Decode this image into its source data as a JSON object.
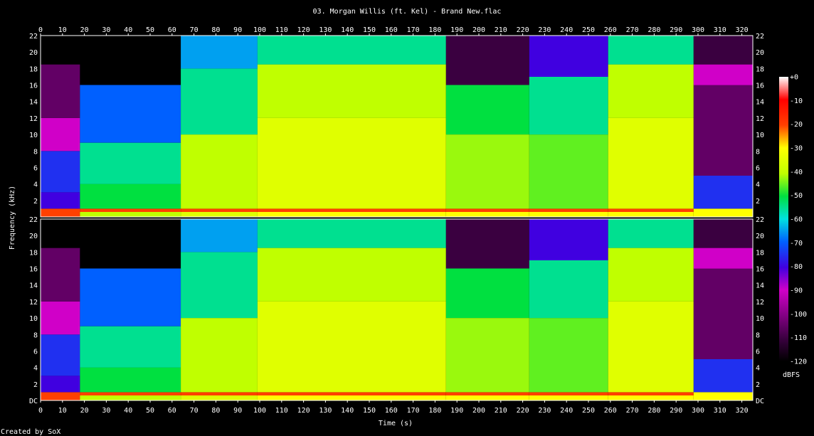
{
  "chart_data": {
    "type": "heatmap",
    "title": "03. Morgan Willis (ft. Kel) - Brand New.flac",
    "xlabel": "Time (s)",
    "ylabel": "Frequency (kHz)",
    "footer": "Created by SoX",
    "colorbar_label": "dBFS",
    "xlim": [
      0,
      325
    ],
    "ylim": [
      0,
      22
    ],
    "x_ticks": [
      0,
      10,
      20,
      30,
      40,
      50,
      60,
      70,
      80,
      90,
      100,
      110,
      120,
      130,
      140,
      150,
      160,
      170,
      180,
      190,
      200,
      210,
      220,
      230,
      240,
      250,
      260,
      270,
      280,
      290,
      300,
      310,
      320
    ],
    "y_ticks_top": [
      "2",
      "4",
      "6",
      "8",
      "10",
      "12",
      "14",
      "16",
      "18",
      "20",
      "22"
    ],
    "y_ticks_bottom": [
      "DC",
      "2",
      "4",
      "6",
      "8",
      "10",
      "12",
      "14",
      "16",
      "18",
      "20",
      "22"
    ],
    "colorbar_ticks": [
      "+0",
      "-10",
      "-20",
      "-30",
      "-40",
      "-50",
      "-60",
      "-70",
      "-80",
      "-90",
      "-100",
      "-110",
      "-120"
    ],
    "colorbar_range": [
      -120,
      0
    ],
    "channels": 2,
    "segments": [
      {
        "t0": 0,
        "t1": 18,
        "levels": [
          [
            0,
            1,
            -20
          ],
          [
            1,
            3,
            -80
          ],
          [
            3,
            8,
            -75
          ],
          [
            8,
            12,
            -90
          ],
          [
            12,
            18.5,
            -105
          ],
          [
            18.5,
            22,
            -120
          ]
        ]
      },
      {
        "t0": 18,
        "t1": 64,
        "levels": [
          [
            0,
            0.6,
            -40
          ],
          [
            0.6,
            1,
            -20
          ],
          [
            1,
            4,
            -50
          ],
          [
            4,
            9,
            -55
          ],
          [
            9,
            16,
            -70
          ],
          [
            16,
            22,
            -120
          ]
        ]
      },
      {
        "t0": 64,
        "t1": 99,
        "levels": [
          [
            0,
            0.6,
            -35
          ],
          [
            0.6,
            1,
            -20
          ],
          [
            1,
            10,
            -40
          ],
          [
            10,
            18,
            -55
          ],
          [
            18,
            22,
            -65
          ]
        ]
      },
      {
        "t0": 99,
        "t1": 185,
        "levels": [
          [
            0,
            0.6,
            -30
          ],
          [
            0.6,
            1,
            -20
          ],
          [
            1,
            12,
            -35
          ],
          [
            12,
            18.5,
            -40
          ],
          [
            18.5,
            22,
            -55
          ]
        ]
      },
      {
        "t0": 185,
        "t1": 223,
        "levels": [
          [
            0,
            0.6,
            -30
          ],
          [
            0.6,
            1,
            -20
          ],
          [
            1,
            10,
            -42
          ],
          [
            10,
            16,
            -50
          ],
          [
            16,
            22,
            -110
          ]
        ]
      },
      {
        "t0": 223,
        "t1": 259,
        "levels": [
          [
            0,
            0.6,
            -30
          ],
          [
            0.6,
            1,
            -20
          ],
          [
            1,
            10,
            -45
          ],
          [
            10,
            17,
            -55
          ],
          [
            17,
            22,
            -80
          ]
        ]
      },
      {
        "t0": 259,
        "t1": 298,
        "levels": [
          [
            0,
            0.6,
            -30
          ],
          [
            0.6,
            1,
            -20
          ],
          [
            1,
            12,
            -35
          ],
          [
            12,
            18.5,
            -40
          ],
          [
            18.5,
            22,
            -55
          ]
        ]
      },
      {
        "t0": 298,
        "t1": 325,
        "levels": [
          [
            0,
            1,
            -30
          ],
          [
            1,
            5,
            -75
          ],
          [
            5,
            16,
            -105
          ],
          [
            16,
            18.5,
            -90
          ],
          [
            18.5,
            22,
            -110
          ]
        ]
      }
    ]
  }
}
